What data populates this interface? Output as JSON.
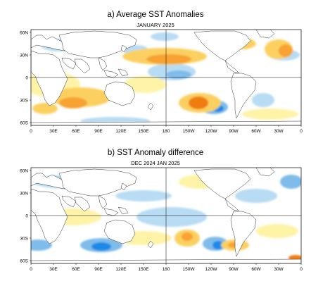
{
  "panel_a": {
    "title": "a) Average SST Anomalies",
    "subtitle": "JANUARY 2025",
    "lat_labels": [
      "60N",
      "30N",
      "0",
      "30S",
      "60S"
    ],
    "lon_labels": [
      "0",
      "30E",
      "60E",
      "90E",
      "120E",
      "150E",
      "180",
      "150W",
      "120W",
      "90W",
      "60W",
      "30W",
      "0"
    ]
  },
  "panel_b": {
    "title": "b) SST Anomaly difference",
    "subtitle": "DEC 2024 JAN 2025",
    "lat_labels": [
      "60N",
      "30N",
      "0",
      "30S",
      "60S"
    ],
    "lon_labels": [
      "0",
      "30E",
      "60E",
      "90E",
      "120E",
      "150E",
      "180",
      "150W",
      "120W",
      "90W",
      "60W",
      "30W",
      "0"
    ]
  },
  "colors": {
    "land": "#ffffff",
    "coast": "#333333",
    "neutral": "#ffffff",
    "cool_light": "#b8dcf4",
    "cool_mid": "#7fbcea",
    "cool_strong": "#1e88e8",
    "warm_light": "#fff3a8",
    "warm_mid": "#fcd060",
    "warm_strong": "#f7a233",
    "warm_deep": "#ef7c10"
  }
}
